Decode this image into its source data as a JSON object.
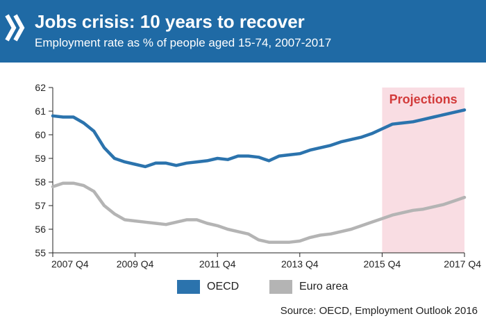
{
  "header": {
    "title": "Jobs crisis: 10 years to recover",
    "subtitle": "Employment rate as % of people aged 15-74, 2007-2017",
    "logo_icon": "oecd-chevron-logo-icon"
  },
  "colors": {
    "header_bg": "#1f6aa5",
    "oecd_line": "#2b73ad",
    "euro_line": "#b4b4b4",
    "projection_band": "#f9dde3",
    "projection_text": "#d23a3a"
  },
  "chart_data": {
    "type": "line",
    "title": "Jobs crisis: 10 years to recover",
    "subtitle": "Employment rate as % of people aged 15-74, 2007-2017",
    "ylim": [
      55,
      62
    ],
    "yticks": [
      55,
      56,
      57,
      58,
      59,
      60,
      61,
      62
    ],
    "xlim": [
      2007.75,
      2017.75
    ],
    "xticks": [
      {
        "x": 2007.75,
        "label": "2007 Q4"
      },
      {
        "x": 2009.75,
        "label": "2009 Q4"
      },
      {
        "x": 2011.75,
        "label": "2011 Q4"
      },
      {
        "x": 2013.75,
        "label": "2013 Q4"
      },
      {
        "x": 2015.75,
        "label": "2015 Q4"
      },
      {
        "x": 2017.75,
        "label": "2017 Q4"
      }
    ],
    "projection": {
      "label": "Projections",
      "from": 2015.75,
      "to": 2017.75
    },
    "grid": false,
    "legend_position": "bottom",
    "series": [
      {
        "name": "OECD",
        "x": [
          2007.75,
          2008.0,
          2008.25,
          2008.5,
          2008.75,
          2009.0,
          2009.25,
          2009.5,
          2009.75,
          2010.0,
          2010.25,
          2010.5,
          2010.75,
          2011.0,
          2011.25,
          2011.5,
          2011.75,
          2012.0,
          2012.25,
          2012.5,
          2012.75,
          2013.0,
          2013.25,
          2013.5,
          2013.75,
          2014.0,
          2014.25,
          2014.5,
          2014.75,
          2015.0,
          2015.25,
          2015.5,
          2015.75,
          2016.0,
          2016.25,
          2016.5,
          2016.75,
          2017.0,
          2017.25,
          2017.5,
          2017.75
        ],
        "values": [
          60.8,
          60.75,
          60.75,
          60.5,
          60.15,
          59.45,
          59.0,
          58.85,
          58.75,
          58.65,
          58.8,
          58.8,
          58.7,
          58.8,
          58.85,
          58.9,
          59.0,
          58.95,
          59.1,
          59.1,
          59.05,
          58.9,
          59.1,
          59.15,
          59.2,
          59.35,
          59.45,
          59.55,
          59.7,
          59.8,
          59.9,
          60.05,
          60.25,
          60.45,
          60.5,
          60.55,
          60.65,
          60.75,
          60.85,
          60.95,
          61.05
        ]
      },
      {
        "name": "Euro area",
        "x": [
          2007.75,
          2008.0,
          2008.25,
          2008.5,
          2008.75,
          2009.0,
          2009.25,
          2009.5,
          2009.75,
          2010.0,
          2010.25,
          2010.5,
          2010.75,
          2011.0,
          2011.25,
          2011.5,
          2011.75,
          2012.0,
          2012.25,
          2012.5,
          2012.75,
          2013.0,
          2013.25,
          2013.5,
          2013.75,
          2014.0,
          2014.25,
          2014.5,
          2014.75,
          2015.0,
          2015.25,
          2015.5,
          2015.75,
          2016.0,
          2016.25,
          2016.5,
          2016.75,
          2017.0,
          2017.25,
          2017.5,
          2017.75
        ],
        "values": [
          57.8,
          57.95,
          57.95,
          57.85,
          57.6,
          57.0,
          56.65,
          56.4,
          56.35,
          56.3,
          56.25,
          56.2,
          56.3,
          56.4,
          56.4,
          56.25,
          56.15,
          56.0,
          55.9,
          55.8,
          55.55,
          55.45,
          55.45,
          55.45,
          55.5,
          55.65,
          55.75,
          55.8,
          55.9,
          56.0,
          56.15,
          56.3,
          56.45,
          56.6,
          56.7,
          56.8,
          56.85,
          56.95,
          57.05,
          57.2,
          57.35
        ]
      }
    ]
  },
  "source": "Source: OECD, Employment Outlook 2016"
}
